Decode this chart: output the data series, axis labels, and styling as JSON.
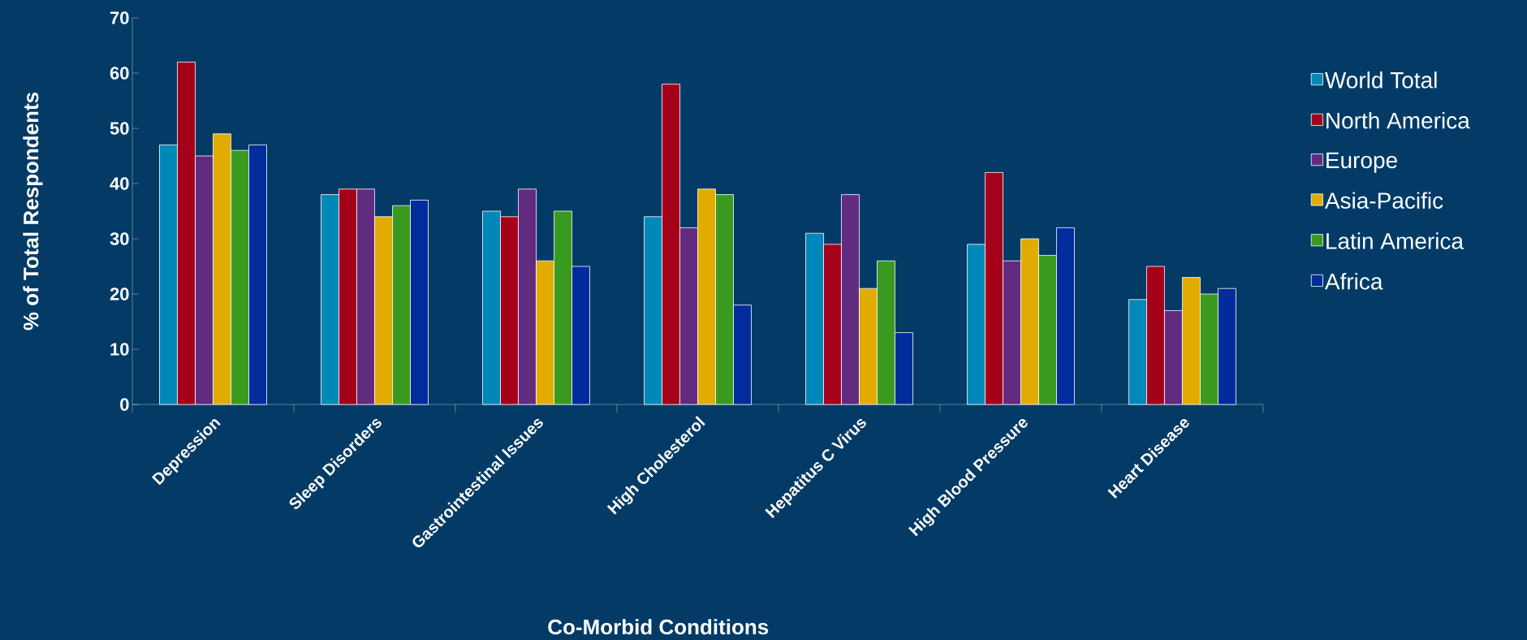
{
  "chart_data": {
    "type": "bar",
    "xlabel": "Co-Morbid Conditions",
    "ylabel": "% of Total Respondents",
    "categories": [
      "Depression",
      "Sleep Disorders",
      "Gastrointestinal Issues",
      "High Cholesterol",
      "Hepatitus C Virus",
      "High Blood Pressure",
      "Heart Disease"
    ],
    "series": [
      {
        "name": "World Total",
        "color": "#0088b9",
        "values": [
          47,
          38,
          35,
          34,
          31,
          29,
          19
        ]
      },
      {
        "name": "North America",
        "color": "#a50019",
        "values": [
          62,
          39,
          34,
          58,
          29,
          42,
          25
        ]
      },
      {
        "name": "Europe",
        "color": "#612c7f",
        "values": [
          45,
          39,
          39,
          32,
          38,
          26,
          17
        ]
      },
      {
        "name": "Asia-Pacific",
        "color": "#e2ab00",
        "values": [
          49,
          34,
          26,
          39,
          21,
          30,
          23
        ]
      },
      {
        "name": "Latin America",
        "color": "#3a9a20",
        "values": [
          46,
          36,
          35,
          38,
          26,
          27,
          20
        ]
      },
      {
        "name": "Africa",
        "color": "#002c9c",
        "values": [
          47,
          37,
          25,
          18,
          13,
          32,
          21
        ]
      }
    ],
    "ylim": [
      0,
      70
    ],
    "yticks": [
      0,
      10,
      20,
      30,
      40,
      50,
      60,
      70
    ],
    "legend": "right"
  }
}
